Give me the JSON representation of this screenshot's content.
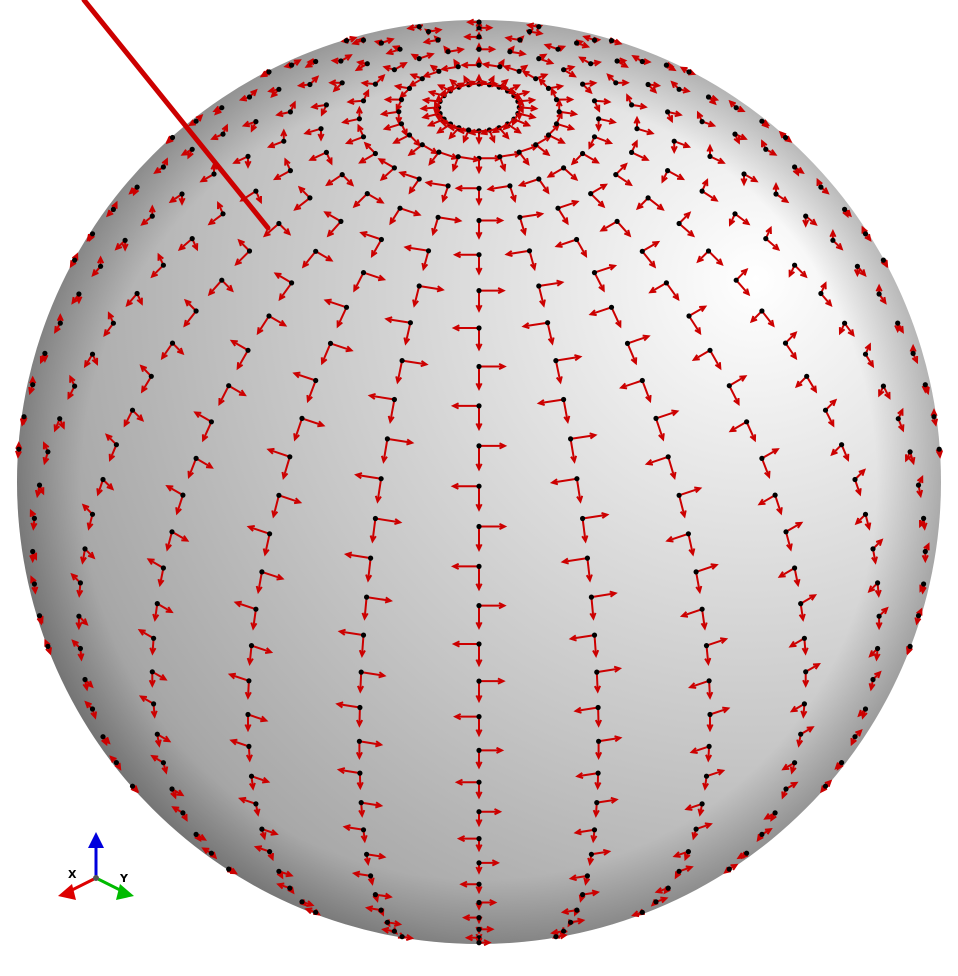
{
  "viewport": {
    "background": "#ffffff",
    "sphere": {
      "shade_light": "#f6f6f6",
      "shade_mid": "#c8c8c8",
      "shade_dark": "#8e8e8e"
    },
    "vector_field": {
      "arrow_color": "#cc0000",
      "point_color": "#000000",
      "meridians": 24,
      "latitude_rings": 36
    },
    "probe_line": {
      "color": "#cc0000"
    }
  },
  "orientation_triad": {
    "labels": {
      "x": "X",
      "y": "Y"
    },
    "colors": {
      "x": "#dd0000",
      "y": "#00bb00",
      "z": "#0000dd"
    }
  }
}
